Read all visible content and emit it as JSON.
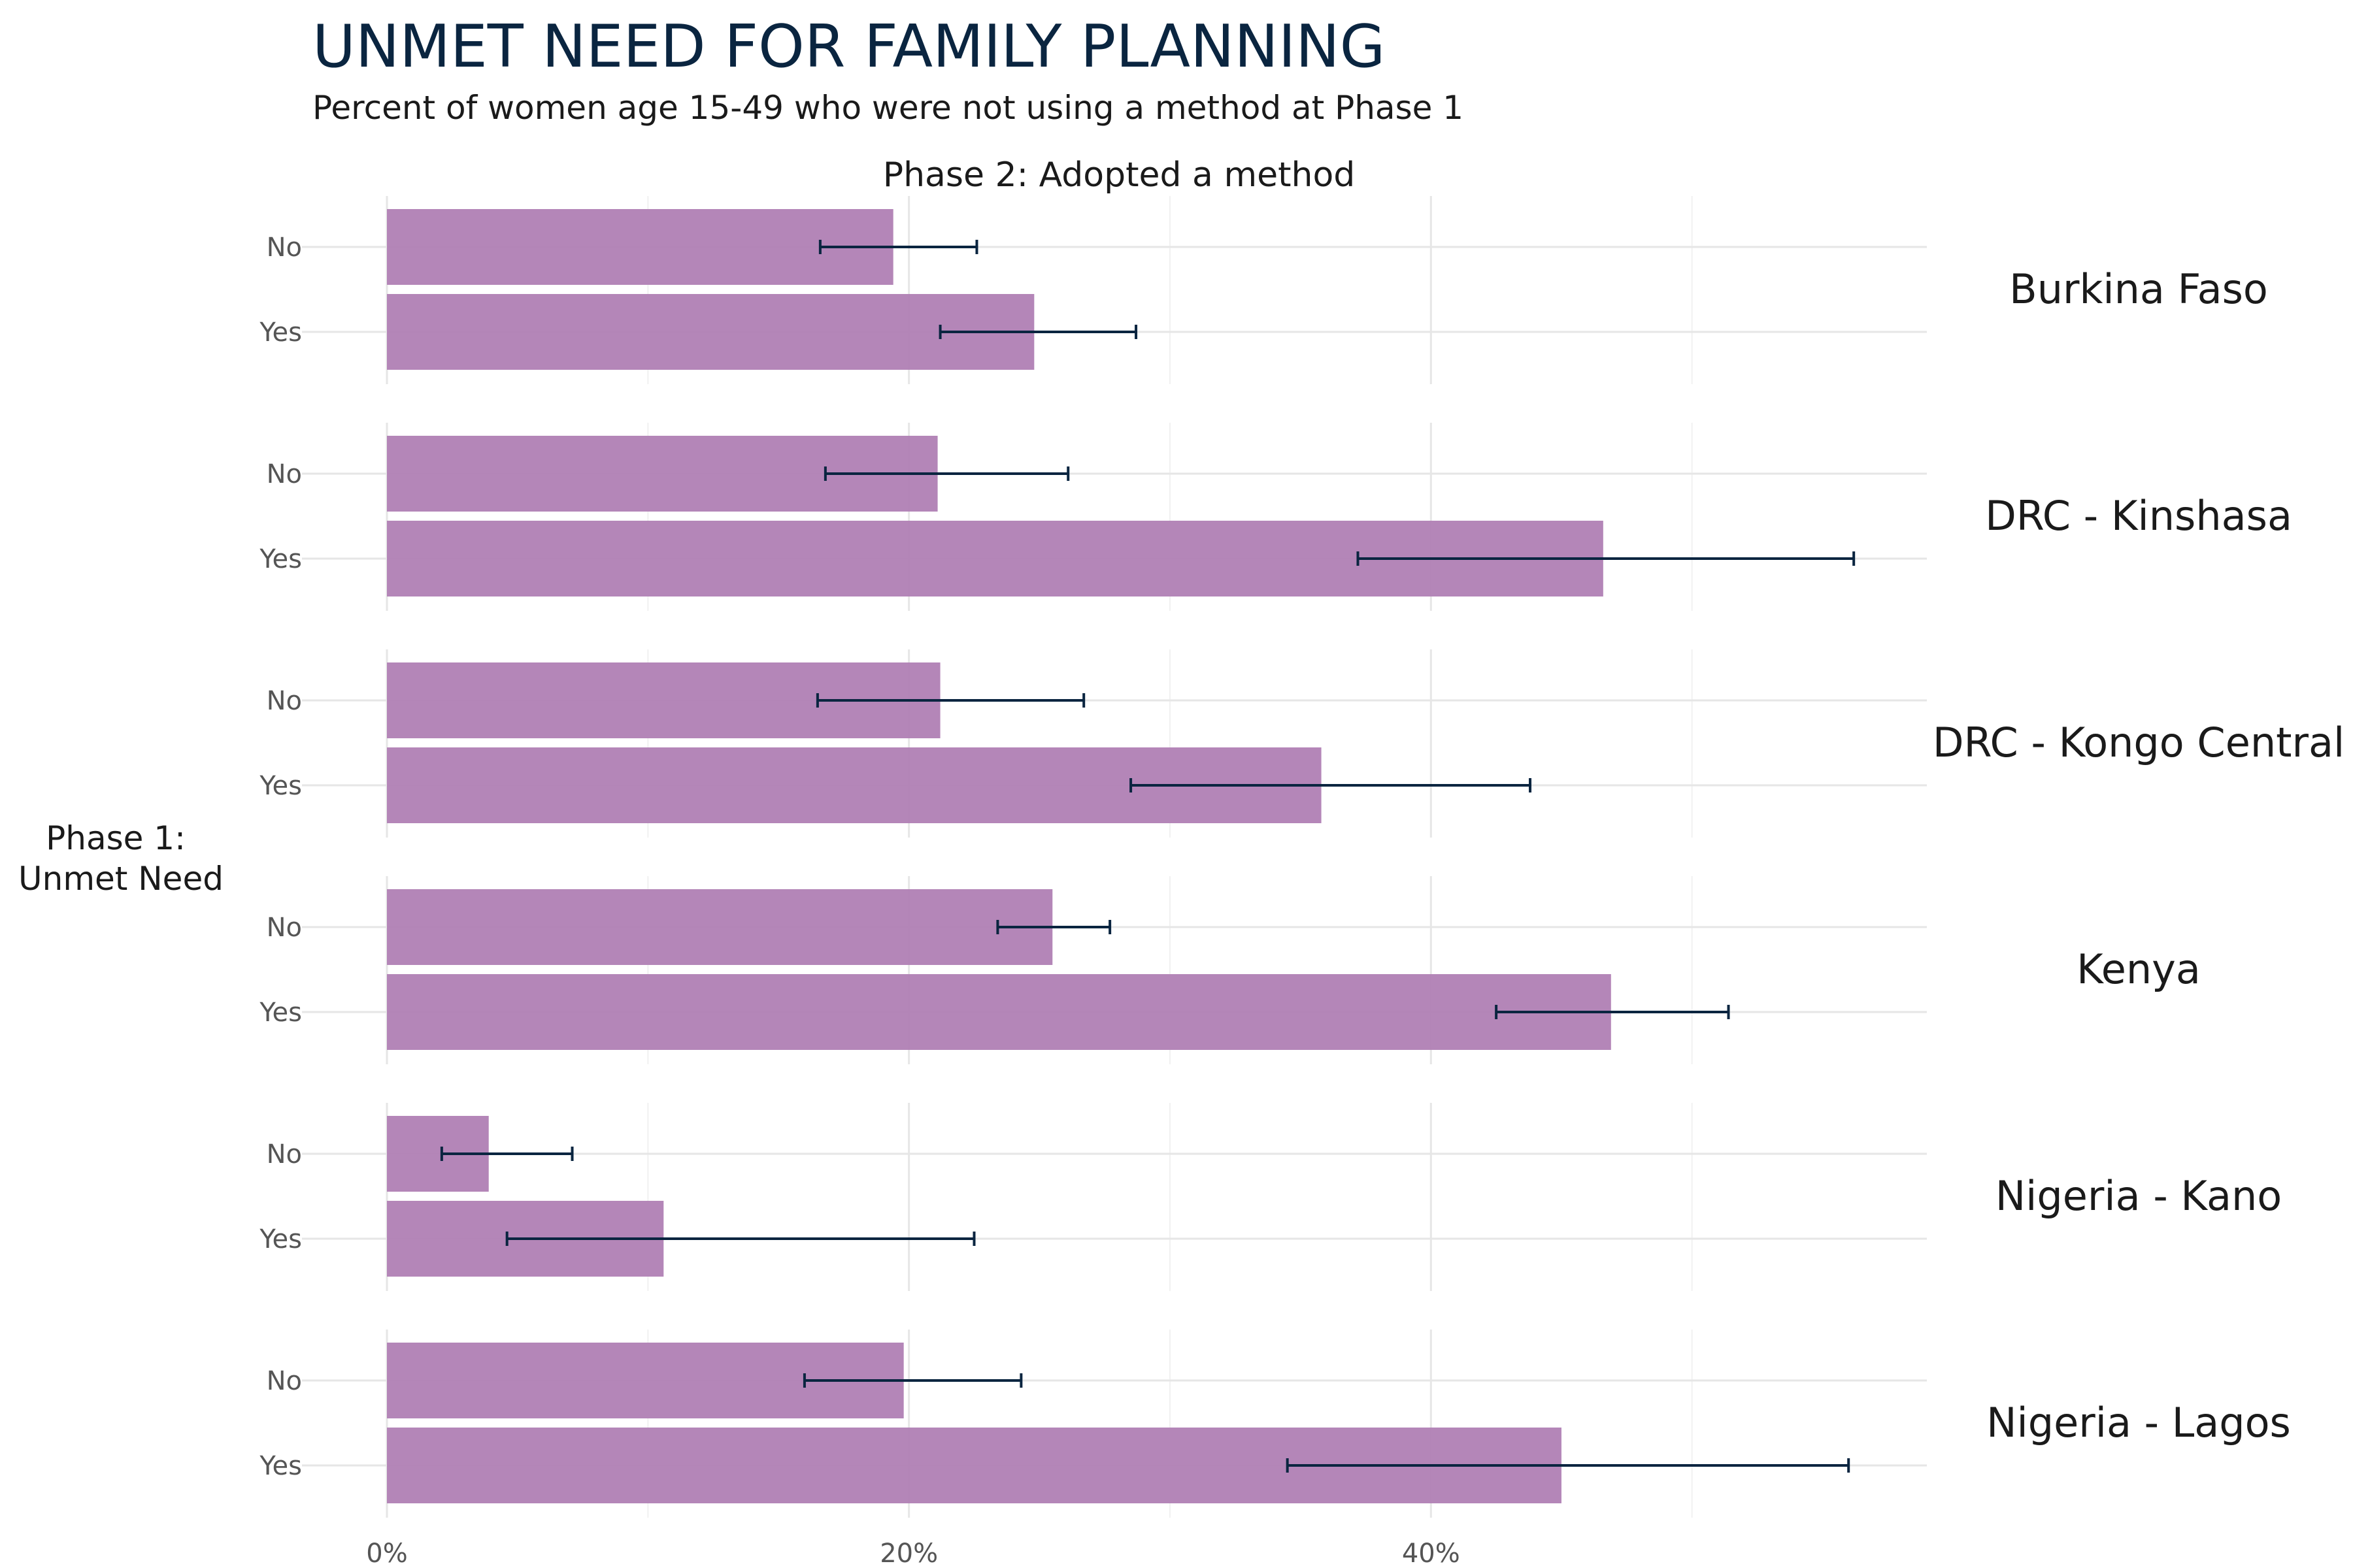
{
  "chart_data": {
    "type": "bar",
    "orientation": "horizontal",
    "title": "UNMET NEED FOR FAMILY PLANNING",
    "subtitle": "Percent of women age 15-49 who were not using a method at Phase 1",
    "strip_label": "Phase 2: Adopted a method",
    "ylabel": "Phase 1:\nUnmet Need",
    "xlabel": "",
    "categories": [
      "No",
      "Yes"
    ],
    "xlim": [
      0,
      59
    ],
    "x_ticks": [
      0,
      20,
      40
    ],
    "x_tick_labels": [
      "0%",
      "20%",
      "40%"
    ],
    "grid": true,
    "bar_color": "#b07fb4",
    "errorbar_color": "#0a2540",
    "facets": [
      {
        "name": "Burkina Faso",
        "bars": [
          {
            "category": "No",
            "value": 19.4,
            "low": 16.6,
            "high": 22.6
          },
          {
            "category": "Yes",
            "value": 24.8,
            "low": 21.2,
            "high": 28.7
          }
        ]
      },
      {
        "name": "DRC - Kinshasa",
        "bars": [
          {
            "category": "No",
            "value": 21.1,
            "low": 16.8,
            "high": 26.1
          },
          {
            "category": "Yes",
            "value": 46.6,
            "low": 37.2,
            "high": 56.2
          }
        ]
      },
      {
        "name": "DRC - Kongo Central",
        "bars": [
          {
            "category": "No",
            "value": 21.2,
            "low": 16.5,
            "high": 26.7
          },
          {
            "category": "Yes",
            "value": 35.8,
            "low": 28.5,
            "high": 43.8
          }
        ]
      },
      {
        "name": "Kenya",
        "bars": [
          {
            "category": "No",
            "value": 25.5,
            "low": 23.4,
            "high": 27.7
          },
          {
            "category": "Yes",
            "value": 46.9,
            "low": 42.5,
            "high": 51.4
          }
        ]
      },
      {
        "name": "Nigeria - Kano",
        "bars": [
          {
            "category": "No",
            "value": 3.9,
            "low": 2.1,
            "high": 7.1
          },
          {
            "category": "Yes",
            "value": 10.6,
            "low": 4.6,
            "high": 22.5
          }
        ]
      },
      {
        "name": "Nigeria - Lagos",
        "bars": [
          {
            "category": "No",
            "value": 19.8,
            "low": 16.0,
            "high": 24.3
          },
          {
            "category": "Yes",
            "value": 45.0,
            "low": 34.5,
            "high": 56.0
          }
        ]
      }
    ]
  }
}
